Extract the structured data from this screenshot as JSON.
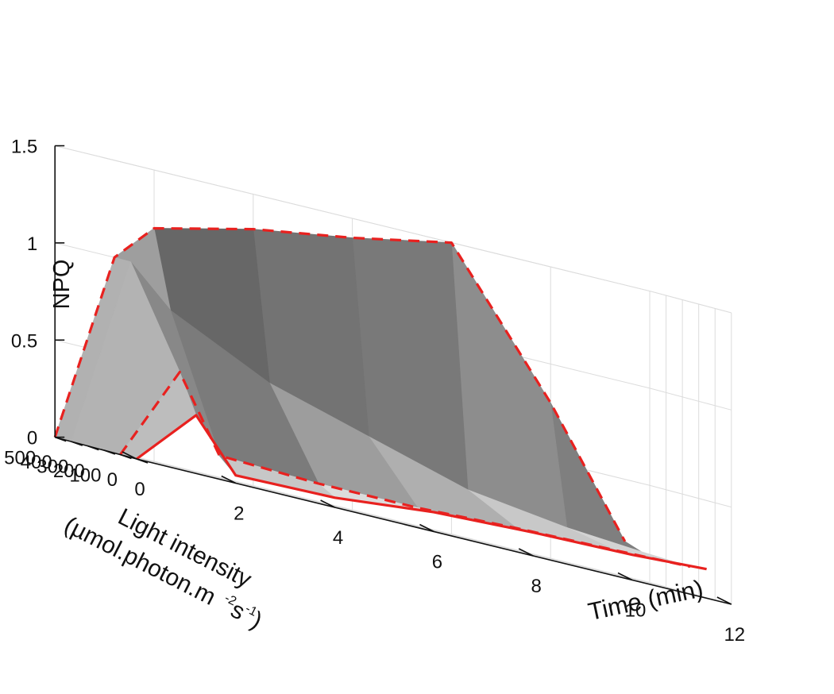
{
  "chart_data": {
    "type": "surface",
    "zlabel": "NPQ",
    "xlabel": "Time (min)",
    "ylabel_line1": "Light intensity",
    "ylabel_line2_main": "(µmol.photon.m",
    "ylabel_line2_exp1": "-2",
    "ylabel_line2_s": "s",
    "ylabel_line2_exp2": "-1",
    "ylabel_line2_close": ")",
    "xlim": [
      0,
      12
    ],
    "ylim": [
      0,
      500
    ],
    "zlim": [
      0,
      1.5
    ],
    "x_ticks": [
      "0",
      "2",
      "4",
      "6",
      "8",
      "10",
      "12"
    ],
    "y_ticks": [
      "0",
      "100",
      "200",
      "300",
      "400",
      "500"
    ],
    "z_ticks": [
      "0",
      "0.5",
      "1",
      "1.5"
    ],
    "time_min": [
      0,
      1.2,
      2,
      4,
      6,
      8,
      10,
      11.5
    ],
    "light_intensity": [
      0,
      100,
      400,
      500
    ],
    "npq": [
      [
        0.0,
        0.3,
        0.04,
        0.05,
        0.1,
        0.12,
        0.13,
        0.15
      ],
      [
        0.0,
        0.5,
        0.12,
        0.1,
        0.1,
        0.12,
        0.13,
        0.14
      ],
      [
        0.0,
        1.0,
        0.8,
        0.55,
        0.4,
        0.25,
        0.18,
        0.15
      ],
      [
        0.0,
        1.0,
        1.2,
        1.32,
        1.4,
        1.5,
        0.8,
        0.18
      ]
    ],
    "highlight_lines": [
      {
        "light_intensity": 0,
        "style": "solid",
        "color": "#e8211f"
      },
      {
        "light_intensity": 100,
        "style": "dashed",
        "color": "#e8211f"
      },
      {
        "light_intensity": 500,
        "style": "dashed",
        "color": "#e8211f"
      }
    ],
    "grid": true,
    "colormap": "gray"
  }
}
